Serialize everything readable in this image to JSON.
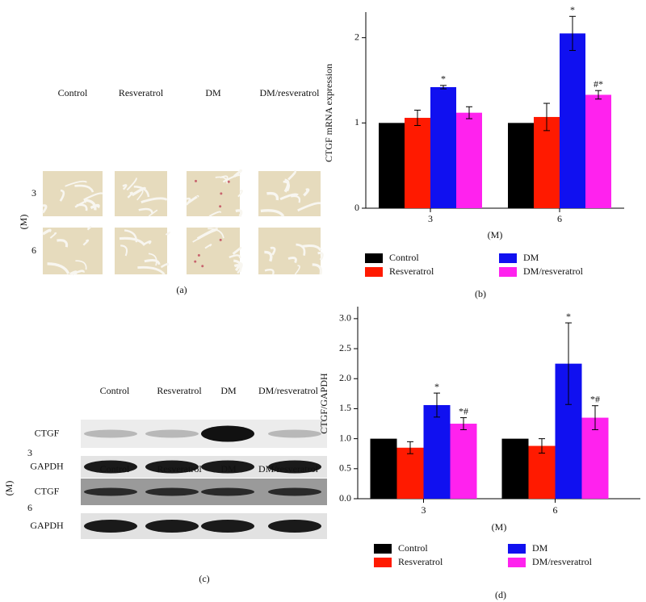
{
  "chart_data": [
    {
      "type": "bar",
      "panel_label": "(b)",
      "x_label": "(M)",
      "y_label": "CTGF mRNA expression",
      "categories": [
        "3",
        "6"
      ],
      "series": [
        {
          "name": "Control",
          "color": "#000000",
          "values": [
            1.0,
            1.0
          ]
        },
        {
          "name": "Resveratrol",
          "color": "#ff1a00",
          "values": [
            1.06,
            1.07
          ],
          "errors": [
            0.09,
            0.16
          ]
        },
        {
          "name": "DM",
          "color": "#1010f0",
          "values": [
            1.42,
            2.05
          ],
          "errors": [
            0.02,
            0.2
          ],
          "annotations": [
            "*",
            "*"
          ]
        },
        {
          "name": "DM/resveratrol",
          "color": "#ff22ee",
          "values": [
            1.12,
            1.33
          ],
          "errors": [
            0.07,
            0.05
          ],
          "annotations": [
            null,
            "#*"
          ]
        }
      ],
      "ylim": [
        0,
        2.3
      ],
      "yticks": [
        0,
        1,
        2
      ]
    },
    {
      "type": "bar",
      "panel_label": "(d)",
      "x_label": "(M)",
      "y_label": "CTGF/GAPDH",
      "categories": [
        "3",
        "6"
      ],
      "series": [
        {
          "name": "Control",
          "color": "#000000",
          "values": [
            1.0,
            1.0
          ]
        },
        {
          "name": "Resveratrol",
          "color": "#ff1a00",
          "values": [
            0.85,
            0.88
          ],
          "errors": [
            0.1,
            0.12
          ]
        },
        {
          "name": "DM",
          "color": "#1010f0",
          "values": [
            1.56,
            2.25
          ],
          "errors": [
            0.2,
            0.68
          ],
          "annotations": [
            "*",
            "*"
          ]
        },
        {
          "name": "DM/resveratrol",
          "color": "#ff22ee",
          "values": [
            1.25,
            1.35
          ],
          "errors": [
            0.1,
            0.2
          ],
          "annotations": [
            "*#",
            "*#"
          ]
        }
      ],
      "ylim": [
        0,
        3.2
      ],
      "yticks": [
        {
          "value": 0,
          "label": "0.0"
        },
        {
          "value": 0.5,
          "label": "0.5"
        },
        {
          "value": 1,
          "label": "1.0"
        },
        {
          "value": 1.5,
          "label": "1.5"
        },
        {
          "value": 2,
          "label": "2.0"
        },
        {
          "value": 2.5,
          "label": "2.5"
        },
        {
          "value": 3,
          "label": "3.0"
        }
      ]
    }
  ],
  "panel_a": {
    "label": "(a)",
    "axis_label": "(M)",
    "columns": [
      "Control",
      "Resveratrol",
      "DM",
      "DM/resveratrol"
    ],
    "rows": [
      "3",
      "6"
    ]
  },
  "panel_c": {
    "label": "(c)",
    "axis_label": "(M)",
    "groups": [
      {
        "row": "3",
        "columns": [
          "Control",
          "Resveratrol",
          "DM",
          "DM/resveratrol"
        ],
        "bands": [
          "CTGF",
          "GAPDH"
        ]
      },
      {
        "row": "6",
        "columns": [
          "Control",
          "Resveratrol",
          "DM",
          "DM/resveratrol"
        ],
        "bands": [
          "CTGF",
          "GAPDH"
        ]
      }
    ]
  }
}
